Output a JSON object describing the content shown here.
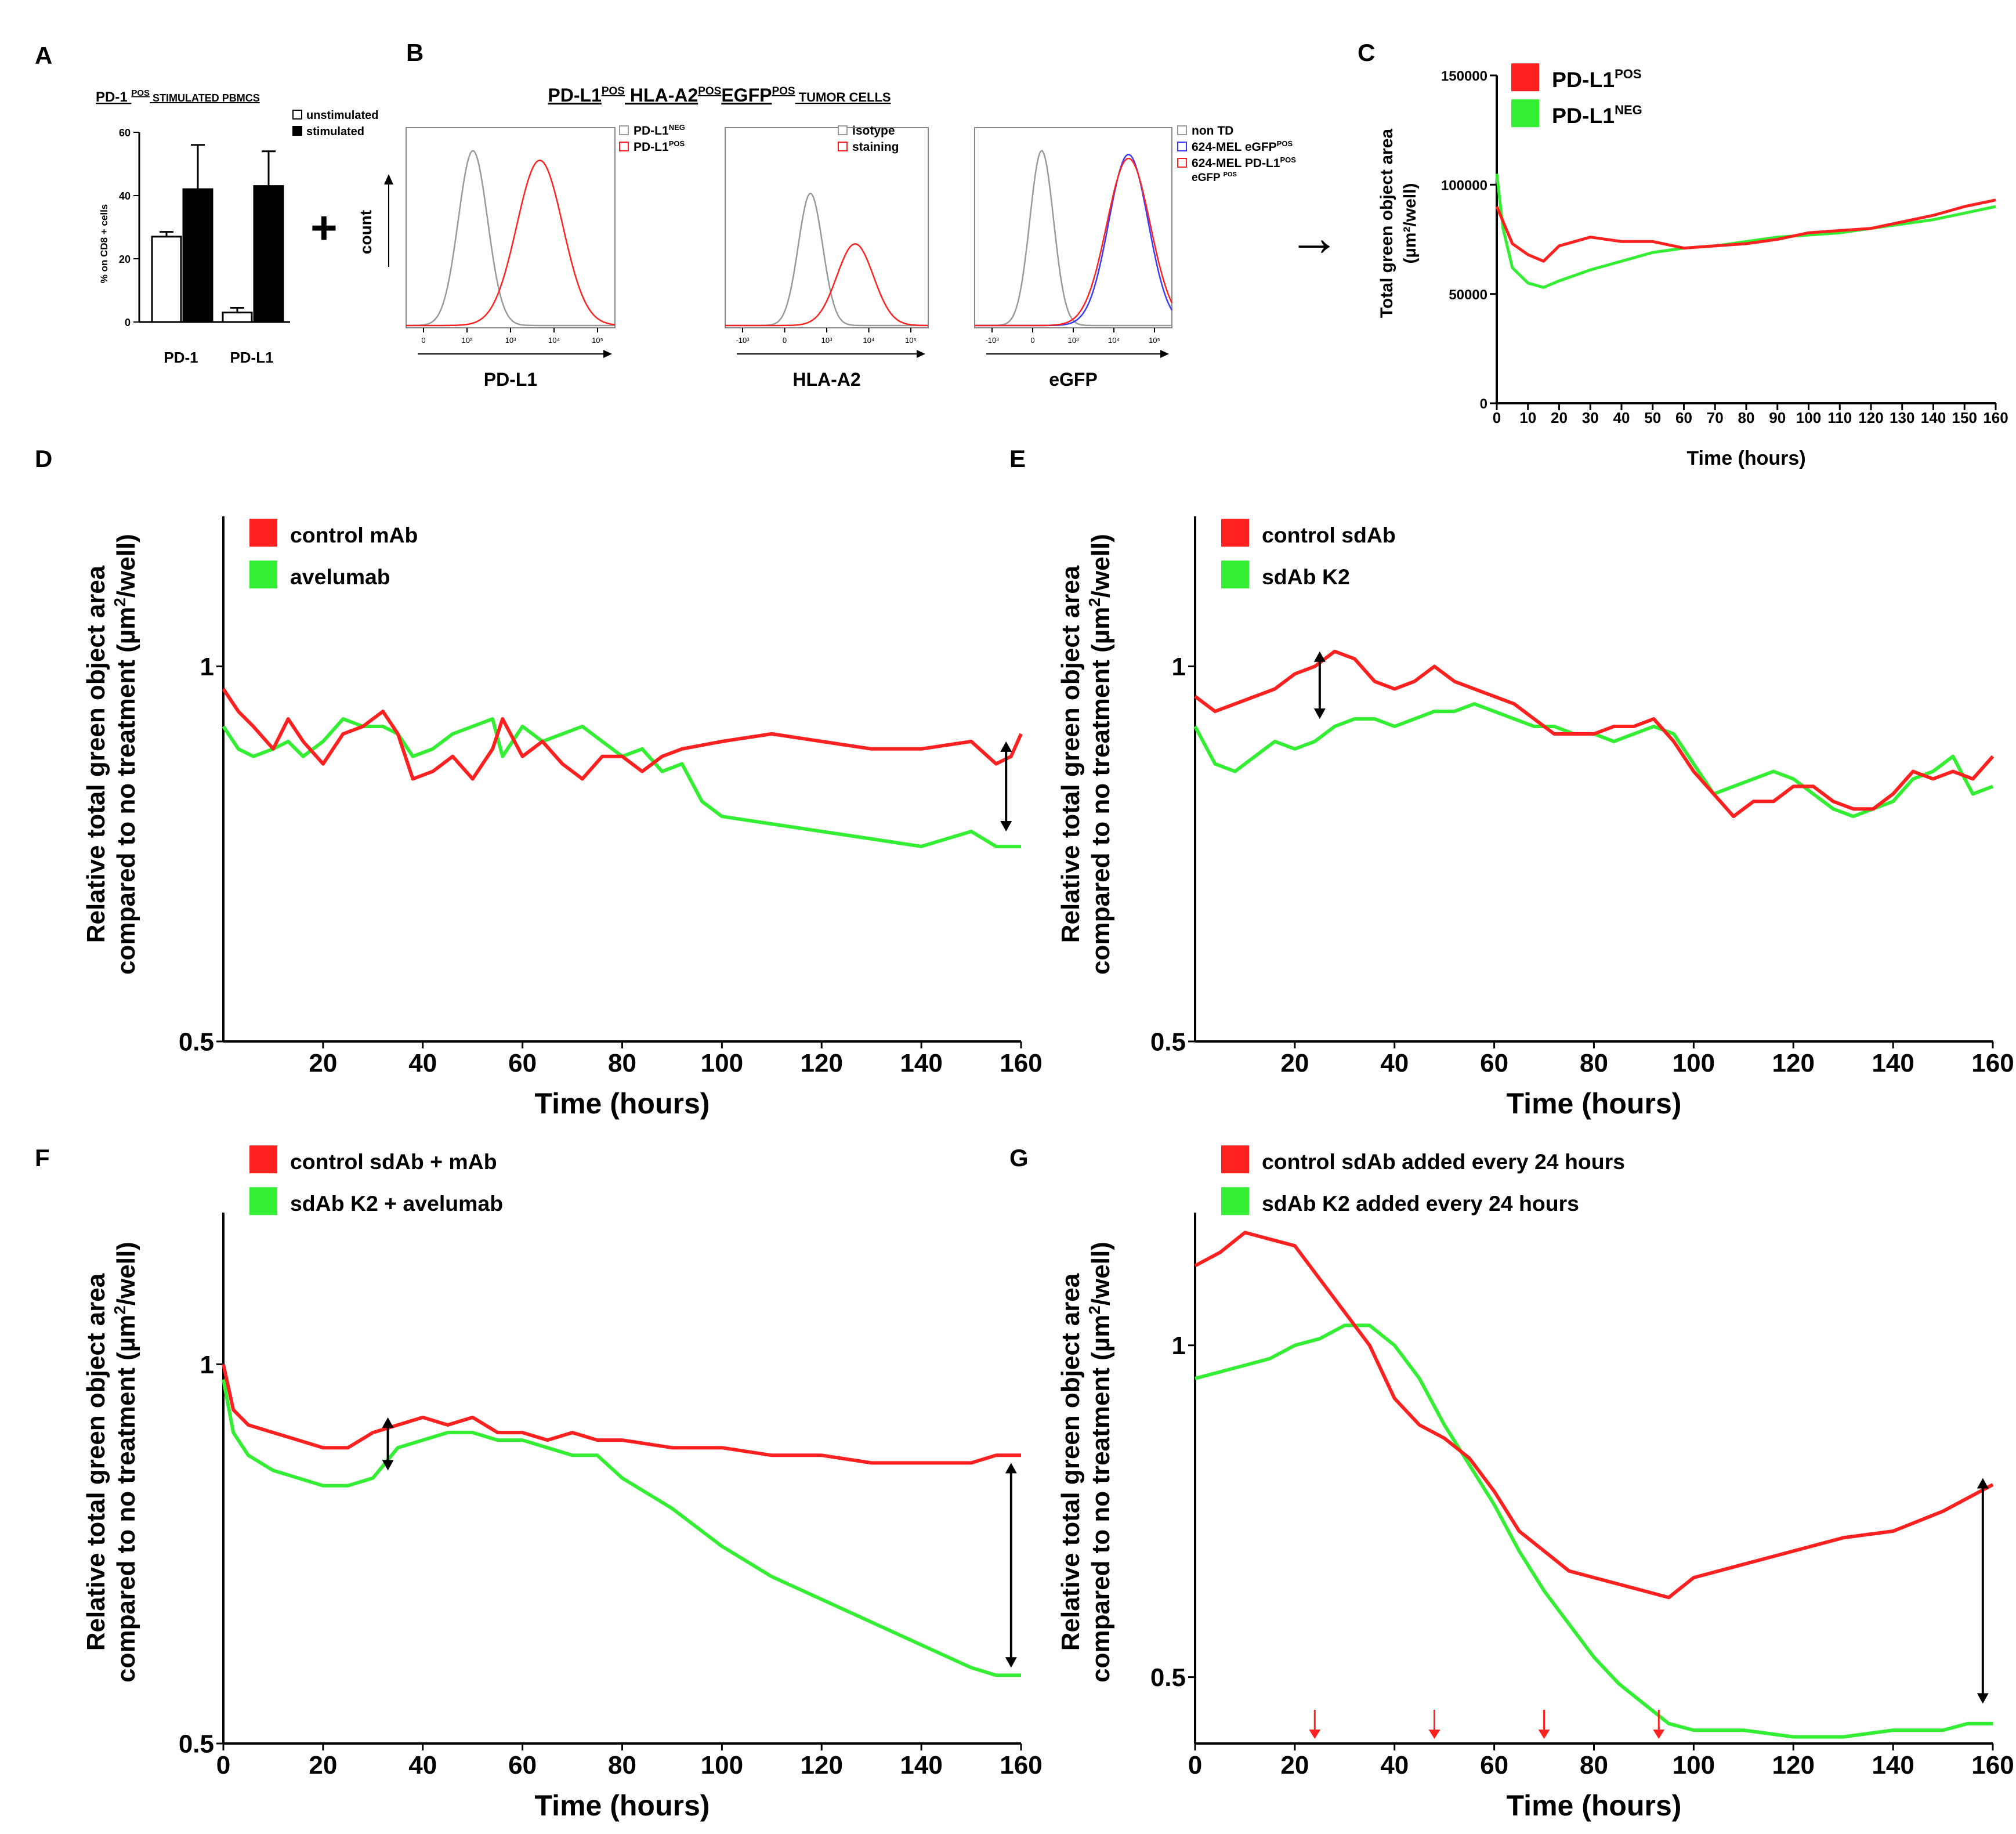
{
  "panel_letters": {
    "A": "A",
    "B": "B",
    "C": "C",
    "D": "D",
    "E": "E",
    "F": "F",
    "G": "G"
  },
  "colors": {
    "red": "#ff2020",
    "green": "#33ee33",
    "gray": "#999999",
    "blue": "#3a3aff",
    "axis": "#000000"
  },
  "panel_A": {
    "title_pre": "PD-1 ",
    "title_sup": "POS",
    "title_post": " STIMULATED PBMCS",
    "ylabel": "% on CD8 + cells",
    "legend": [
      "unstimulated",
      "stimulated"
    ],
    "plus": "+"
  },
  "panel_B": {
    "title_parts": [
      "PD-L1",
      "POS",
      " HLA-A2",
      "POS",
      "EGFP",
      "POS",
      "   TUMOR CELLS"
    ],
    "count_label": "count",
    "hist1": {
      "xlabel": "PD-L1",
      "legend": [
        {
          "t": "PD-L1",
          "s": "NEG"
        },
        {
          "t": "PD-L1",
          "s": "POS"
        }
      ]
    },
    "hist2": {
      "xlabel": "HLA-A2",
      "legend": [
        {
          "t": "isotype",
          "s": ""
        },
        {
          "t": "staining",
          "s": ""
        }
      ]
    },
    "hist3": {
      "xlabel": "eGFP",
      "legend": [
        {
          "t": "non TD",
          "s": ""
        },
        {
          "t": "624-MEL eGFP",
          "s": "POS"
        },
        {
          "t": "624-MEL PD-L1",
          "s": "POS"
        }
      ],
      "legend_line2": {
        "t": "eGFP ",
        "s": "POS"
      }
    },
    "arrow": "→"
  },
  "panel_C": {
    "ylabel_line1": "Total green object area",
    "ylabel_line2": "(µm²/well)",
    "legend": [
      {
        "t": "PD-L1",
        "s": "POS"
      },
      {
        "t": "PD-L1",
        "s": "NEG"
      }
    ]
  },
  "line_panels_labels": {
    "ylabel_line1": "Relative total green object area",
    "ylabel_line2_pre": "compared to no treatment (µm",
    "ylabel_line2_sup": "2",
    "ylabel_line2_post": "/well)"
  },
  "chart_data": [
    {
      "panel": "A",
      "type": "bar",
      "title": "PD-1 POS STIMULATED PBMCS",
      "ylabel": "% on CD8 + cells",
      "categories": [
        "PD-1",
        "PD-L1"
      ],
      "series": [
        {
          "name": "unstimulated",
          "values": [
            27,
            3
          ],
          "errors": [
            1.5,
            1.5
          ]
        },
        {
          "name": "stimulated",
          "values": [
            42,
            43
          ],
          "errors": [
            14,
            11
          ]
        }
      ],
      "ylim": [
        0,
        60
      ],
      "yticks": [
        0,
        20,
        40,
        60
      ]
    },
    {
      "panel": "B1",
      "type": "area",
      "xlabel": "PD-L1",
      "ylabel": "count",
      "xticks": [
        "0",
        "10²",
        "10³",
        "10⁴",
        "10⁵"
      ],
      "series": [
        {
          "name": "PD-L1 NEG",
          "color": "gray",
          "center": 0.32,
          "width": 0.07,
          "height": 0.9
        },
        {
          "name": "PD-L1 POS",
          "color": "red",
          "center": 0.64,
          "width": 0.11,
          "height": 0.85
        }
      ]
    },
    {
      "panel": "B2",
      "type": "area",
      "xlabel": "HLA-A2",
      "xticks": [
        "-10³",
        "0",
        "10³",
        "10⁴",
        "10⁵"
      ],
      "series": [
        {
          "name": "isotype",
          "color": "gray",
          "center": 0.42,
          "width": 0.06,
          "height": 0.68
        },
        {
          "name": "staining",
          "color": "red",
          "center": 0.64,
          "width": 0.09,
          "height": 0.42
        }
      ]
    },
    {
      "panel": "B3",
      "type": "area",
      "xlabel": "eGFP",
      "xticks": [
        "-10³",
        "0",
        "10³",
        "10⁴",
        "10⁵"
      ],
      "series": [
        {
          "name": "non TD",
          "color": "gray",
          "center": 0.34,
          "width": 0.06,
          "height": 0.9
        },
        {
          "name": "624-MEL eGFP POS",
          "color": "blue",
          "center": 0.78,
          "width": 0.1,
          "height": 0.88
        },
        {
          "name": "624-MEL PD-L1 POS eGFP POS",
          "color": "red",
          "center": 0.78,
          "width": 0.11,
          "height": 0.86
        }
      ]
    },
    {
      "panel": "C",
      "type": "line",
      "xlabel": "Time (hours)",
      "ylabel": "Total green object area (µm²/well)",
      "xlim": [
        0,
        160
      ],
      "ylim": [
        0,
        150000
      ],
      "xticks": [
        0,
        10,
        20,
        30,
        40,
        50,
        60,
        70,
        80,
        90,
        100,
        110,
        120,
        130,
        140,
        150,
        160
      ],
      "yticks": [
        0,
        50000,
        100000,
        150000
      ],
      "series": [
        {
          "name": "PD-L1 POS",
          "color": "red",
          "x": [
            0,
            5,
            10,
            15,
            20,
            30,
            40,
            50,
            60,
            70,
            80,
            90,
            100,
            110,
            120,
            130,
            140,
            150,
            160
          ],
          "y": [
            90000,
            73000,
            68000,
            65000,
            72000,
            76000,
            74000,
            74000,
            71000,
            72000,
            73000,
            75000,
            78000,
            79000,
            80000,
            83000,
            86000,
            90000,
            93000
          ]
        },
        {
          "name": "PD-L1 NEG",
          "color": "green",
          "x": [
            0,
            2,
            5,
            10,
            15,
            20,
            30,
            40,
            50,
            60,
            70,
            80,
            90,
            100,
            110,
            120,
            130,
            140,
            150,
            160
          ],
          "y": [
            105000,
            80000,
            62000,
            55000,
            53000,
            56000,
            61000,
            65000,
            69000,
            71000,
            72000,
            74000,
            76000,
            77000,
            78000,
            80000,
            82000,
            84000,
            87000,
            90000
          ]
        }
      ]
    },
    {
      "panel": "D",
      "type": "line",
      "xlabel": "Time (hours)",
      "ylim": [
        0.5,
        1.2
      ],
      "xlim": [
        0,
        160
      ],
      "xticks": [
        20,
        40,
        60,
        80,
        100,
        120,
        140,
        160
      ],
      "yticks": [
        0.5,
        1.0
      ],
      "legend": [
        "control mAb",
        "avelumab"
      ],
      "series": [
        {
          "name": "control mAb",
          "color": "red",
          "x": [
            0,
            3,
            6,
            10,
            13,
            16,
            20,
            24,
            28,
            32,
            35,
            38,
            42,
            46,
            50,
            54,
            56,
            60,
            64,
            68,
            72,
            76,
            80,
            84,
            88,
            92,
            100,
            110,
            120,
            130,
            140,
            150,
            155,
            158,
            160
          ],
          "y": [
            0.97,
            0.94,
            0.92,
            0.89,
            0.93,
            0.9,
            0.87,
            0.91,
            0.92,
            0.94,
            0.91,
            0.85,
            0.86,
            0.88,
            0.85,
            0.89,
            0.93,
            0.88,
            0.9,
            0.87,
            0.85,
            0.88,
            0.88,
            0.86,
            0.88,
            0.89,
            0.9,
            0.91,
            0.9,
            0.89,
            0.89,
            0.9,
            0.87,
            0.88,
            0.91
          ]
        },
        {
          "name": "avelumab",
          "color": "green",
          "x": [
            0,
            3,
            6,
            10,
            13,
            16,
            20,
            24,
            28,
            32,
            35,
            38,
            42,
            46,
            50,
            54,
            56,
            60,
            64,
            68,
            72,
            76,
            80,
            84,
            88,
            92,
            96,
            100,
            110,
            120,
            130,
            140,
            150,
            155,
            160
          ],
          "y": [
            0.92,
            0.89,
            0.88,
            0.89,
            0.9,
            0.88,
            0.9,
            0.93,
            0.92,
            0.92,
            0.91,
            0.88,
            0.89,
            0.91,
            0.92,
            0.93,
            0.88,
            0.92,
            0.9,
            0.91,
            0.92,
            0.9,
            0.88,
            0.89,
            0.86,
            0.87,
            0.82,
            0.8,
            0.79,
            0.78,
            0.77,
            0.76,
            0.78,
            0.76,
            0.76
          ]
        }
      ]
    },
    {
      "panel": "E",
      "type": "line",
      "xlabel": "Time (hours)",
      "ylim": [
        0.5,
        1.2
      ],
      "xlim": [
        0,
        160
      ],
      "xticks": [
        20,
        40,
        60,
        80,
        100,
        120,
        140,
        160
      ],
      "yticks": [
        0.5,
        1.0
      ],
      "legend": [
        "control sdAb",
        "sdAb K2"
      ],
      "series": [
        {
          "name": "control sdAb",
          "color": "red",
          "x": [
            0,
            4,
            8,
            12,
            16,
            20,
            24,
            28,
            32,
            36,
            40,
            44,
            48,
            52,
            56,
            60,
            64,
            68,
            72,
            76,
            80,
            84,
            88,
            92,
            96,
            100,
            104,
            108,
            112,
            116,
            120,
            124,
            128,
            132,
            136,
            140,
            144,
            148,
            152,
            156,
            160
          ],
          "y": [
            0.96,
            0.94,
            0.95,
            0.96,
            0.97,
            0.99,
            1.0,
            1.02,
            1.01,
            0.98,
            0.97,
            0.98,
            1.0,
            0.98,
            0.97,
            0.96,
            0.95,
            0.93,
            0.91,
            0.91,
            0.91,
            0.92,
            0.92,
            0.93,
            0.9,
            0.86,
            0.83,
            0.8,
            0.82,
            0.82,
            0.84,
            0.84,
            0.82,
            0.81,
            0.81,
            0.83,
            0.86,
            0.85,
            0.86,
            0.85,
            0.88
          ]
        },
        {
          "name": "sdAb K2",
          "color": "green",
          "x": [
            0,
            4,
            8,
            12,
            16,
            20,
            24,
            28,
            32,
            36,
            40,
            44,
            48,
            52,
            56,
            60,
            64,
            68,
            72,
            76,
            80,
            84,
            88,
            92,
            96,
            100,
            104,
            108,
            112,
            116,
            120,
            124,
            128,
            132,
            136,
            140,
            144,
            148,
            152,
            156,
            160
          ],
          "y": [
            0.92,
            0.87,
            0.86,
            0.88,
            0.9,
            0.89,
            0.9,
            0.92,
            0.93,
            0.93,
            0.92,
            0.93,
            0.94,
            0.94,
            0.95,
            0.94,
            0.93,
            0.92,
            0.92,
            0.91,
            0.91,
            0.9,
            0.91,
            0.92,
            0.91,
            0.87,
            0.83,
            0.84,
            0.85,
            0.86,
            0.85,
            0.83,
            0.81,
            0.8,
            0.81,
            0.82,
            0.85,
            0.86,
            0.88,
            0.83,
            0.84
          ]
        }
      ]
    },
    {
      "panel": "F",
      "type": "line",
      "xlabel": "Time (hours)",
      "ylim": [
        0.5,
        1.2
      ],
      "xlim": [
        0,
        160
      ],
      "xticks": [
        0,
        20,
        40,
        60,
        80,
        100,
        120,
        140,
        160
      ],
      "yticks": [
        0.5,
        1.0
      ],
      "legend": [
        "control sdAb + mAb",
        "sdAb K2 + avelumab"
      ],
      "series": [
        {
          "name": "control sdAb + mAb",
          "color": "red",
          "x": [
            0,
            2,
            5,
            10,
            15,
            20,
            25,
            30,
            35,
            40,
            45,
            50,
            55,
            60,
            65,
            70,
            75,
            80,
            90,
            100,
            110,
            120,
            130,
            140,
            150,
            155,
            160
          ],
          "y": [
            1.0,
            0.94,
            0.92,
            0.91,
            0.9,
            0.89,
            0.89,
            0.91,
            0.92,
            0.93,
            0.92,
            0.93,
            0.91,
            0.91,
            0.9,
            0.91,
            0.9,
            0.9,
            0.89,
            0.89,
            0.88,
            0.88,
            0.87,
            0.87,
            0.87,
            0.88,
            0.88
          ]
        },
        {
          "name": "sdAb K2 + avelumab",
          "color": "green",
          "x": [
            0,
            2,
            5,
            10,
            15,
            20,
            25,
            30,
            35,
            40,
            45,
            50,
            55,
            60,
            65,
            70,
            75,
            80,
            90,
            100,
            110,
            120,
            130,
            140,
            150,
            155,
            160
          ],
          "y": [
            0.98,
            0.91,
            0.88,
            0.86,
            0.85,
            0.84,
            0.84,
            0.85,
            0.89,
            0.9,
            0.91,
            0.91,
            0.9,
            0.9,
            0.89,
            0.88,
            0.88,
            0.85,
            0.81,
            0.76,
            0.72,
            0.69,
            0.66,
            0.63,
            0.6,
            0.59,
            0.59
          ]
        }
      ]
    },
    {
      "panel": "G",
      "type": "line",
      "xlabel": "Time (hours)",
      "ylim": [
        0.4,
        1.2
      ],
      "xlim": [
        0,
        160
      ],
      "xticks": [
        0,
        20,
        40,
        60,
        80,
        100,
        120,
        140,
        160
      ],
      "yticks": [
        0.5,
        1.0
      ],
      "legend": [
        "control sdAb added every 24 hours",
        "sdAb K2 added every 24 hours"
      ],
      "annotations": {
        "red_arrows_x": [
          24,
          48,
          70,
          93
        ]
      },
      "series": [
        {
          "name": "control sdAb added every 24 hours",
          "color": "red",
          "x": [
            0,
            5,
            10,
            15,
            20,
            25,
            30,
            35,
            40,
            45,
            50,
            55,
            60,
            65,
            70,
            75,
            80,
            85,
            90,
            95,
            100,
            110,
            120,
            130,
            140,
            150,
            155,
            160
          ],
          "y": [
            1.12,
            1.14,
            1.17,
            1.16,
            1.15,
            1.1,
            1.05,
            1.0,
            0.92,
            0.88,
            0.86,
            0.83,
            0.78,
            0.72,
            0.69,
            0.66,
            0.65,
            0.64,
            0.63,
            0.62,
            0.65,
            0.67,
            0.69,
            0.71,
            0.72,
            0.75,
            0.77,
            0.79
          ]
        },
        {
          "name": "sdAb K2 added every 24 hours",
          "color": "green",
          "x": [
            0,
            5,
            10,
            15,
            20,
            25,
            30,
            35,
            40,
            45,
            50,
            55,
            60,
            65,
            70,
            75,
            80,
            85,
            90,
            95,
            100,
            110,
            120,
            130,
            140,
            150,
            155,
            160
          ],
          "y": [
            0.95,
            0.96,
            0.97,
            0.98,
            1.0,
            1.01,
            1.03,
            1.03,
            1.0,
            0.95,
            0.88,
            0.82,
            0.76,
            0.69,
            0.63,
            0.58,
            0.53,
            0.49,
            0.46,
            0.43,
            0.42,
            0.42,
            0.41,
            0.41,
            0.42,
            0.42,
            0.43,
            0.43
          ]
        }
      ]
    }
  ]
}
